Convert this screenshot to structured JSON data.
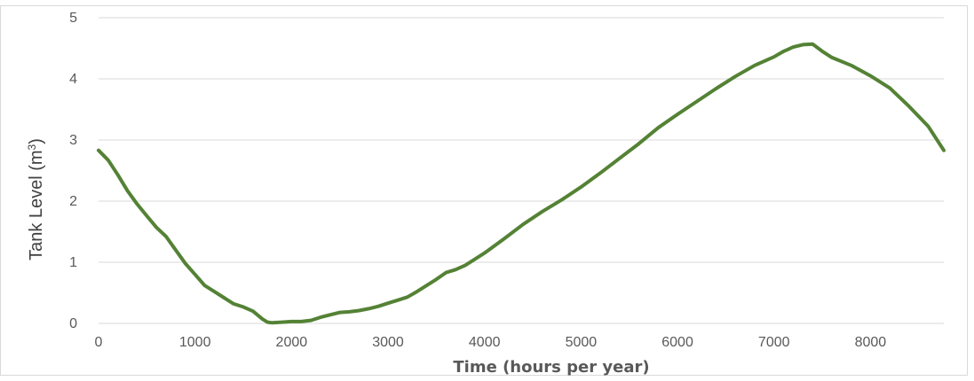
{
  "chart_data": {
    "type": "line",
    "title": "",
    "xlabel": "Time (hours per year)",
    "ylabel_main": "Tank Level (m",
    "ylabel_sup": "3",
    "ylabel_end": ")",
    "xlim": [
      0,
      8760
    ],
    "ylim": [
      0,
      5
    ],
    "x_ticks": [
      0,
      1000,
      2000,
      3000,
      4000,
      5000,
      6000,
      7000,
      8000
    ],
    "y_ticks": [
      0,
      1,
      2,
      3,
      4,
      5
    ],
    "grid": "horizontal",
    "legend": "none",
    "line_color": "#548235",
    "series": [
      {
        "x": [
          0,
          100,
          200,
          300,
          400,
          500,
          600,
          700,
          800,
          900,
          1000,
          1100,
          1200,
          1300,
          1400,
          1500,
          1600,
          1700,
          1750,
          1800,
          1900,
          2000,
          2100,
          2200,
          2300,
          2400,
          2500,
          2600,
          2700,
          2800,
          2900,
          3000,
          3100,
          3200,
          3300,
          3400,
          3500,
          3600,
          3700,
          3800,
          3900,
          4000,
          4200,
          4400,
          4600,
          4800,
          5000,
          5200,
          5400,
          5600,
          5800,
          6000,
          6200,
          6400,
          6600,
          6800,
          7000,
          7100,
          7200,
          7300,
          7400,
          7500,
          7600,
          7800,
          8000,
          8200,
          8400,
          8600,
          8760
        ],
        "y": [
          2.83,
          2.67,
          2.43,
          2.17,
          1.95,
          1.76,
          1.57,
          1.42,
          1.2,
          0.98,
          0.8,
          0.62,
          0.52,
          0.42,
          0.32,
          0.27,
          0.2,
          0.07,
          0.02,
          0.01,
          0.02,
          0.03,
          0.03,
          0.05,
          0.1,
          0.14,
          0.18,
          0.19,
          0.21,
          0.24,
          0.28,
          0.33,
          0.38,
          0.43,
          0.52,
          0.62,
          0.72,
          0.83,
          0.88,
          0.95,
          1.05,
          1.15,
          1.38,
          1.62,
          1.83,
          2.02,
          2.23,
          2.46,
          2.7,
          2.94,
          3.2,
          3.42,
          3.63,
          3.84,
          4.04,
          4.22,
          4.36,
          4.45,
          4.52,
          4.56,
          4.57,
          4.45,
          4.35,
          4.22,
          4.05,
          3.85,
          3.55,
          3.22,
          2.83
        ]
      }
    ]
  }
}
